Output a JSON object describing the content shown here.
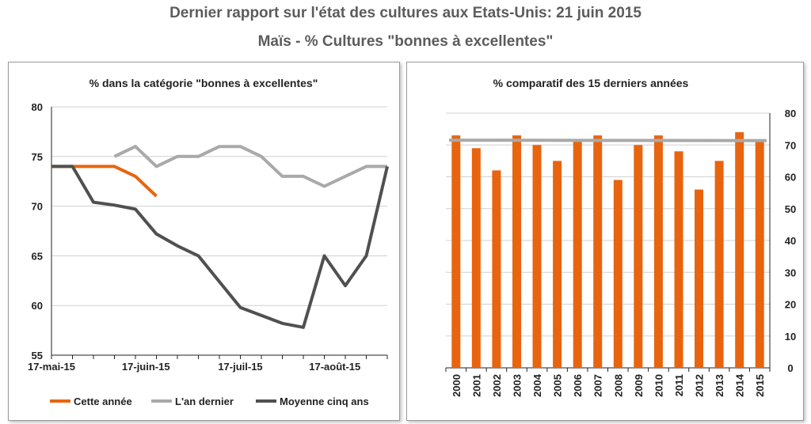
{
  "header": {
    "title": "Dernier rapport sur l'état des cultures aux Etats-Unis: 21 juin 2015",
    "subtitle": "Maïs - % Cultures \"bonnes à excellentes\""
  },
  "colors": {
    "orange": "#e8640f",
    "light_gray": "#a9a9a9",
    "dark_gray": "#505050",
    "grid": "#d0d0d0",
    "axis": "#222222"
  },
  "chart_data": [
    {
      "type": "line",
      "title": "% dans la catégorie \"bonnes à excellentes\"",
      "ylim": [
        55,
        80
      ],
      "yticks": [
        55,
        60,
        65,
        70,
        75,
        80
      ],
      "x_tick_labels": [
        "17-mai-15",
        "17-juin-15",
        "17-juil-15",
        "17-août-15"
      ],
      "x_tick_index": [
        0,
        4.5,
        9,
        13.5
      ],
      "x_count": 17,
      "grid": true,
      "legend_position": "bottom",
      "series": [
        {
          "name": "Cette année",
          "color": "#e8640f",
          "values": [
            74,
            74,
            74,
            74,
            73,
            71
          ]
        },
        {
          "name": "L'an dernier",
          "color": "#a9a9a9",
          "values": [
            null,
            null,
            null,
            75,
            76,
            74,
            75,
            75,
            76,
            76,
            75,
            73,
            73,
            72,
            73,
            74,
            74
          ]
        },
        {
          "name": "Moyenne cinq ans",
          "color": "#505050",
          "values": [
            74,
            74,
            70.4,
            70.1,
            69.7,
            67.2,
            66,
            65,
            62.4,
            59.8,
            59,
            58.2,
            57.8,
            65,
            62,
            65,
            74
          ]
        }
      ]
    },
    {
      "type": "bar",
      "title": "% comparatif des 15 derniers années",
      "categories": [
        "2000",
        "2001",
        "2002",
        "2003",
        "2004",
        "2005",
        "2006",
        "2007",
        "2008",
        "2009",
        "2010",
        "2011",
        "2012",
        "2013",
        "2014",
        "2015"
      ],
      "values": [
        73,
        69,
        62,
        73,
        70,
        65,
        71,
        73,
        59,
        70,
        73,
        68,
        56,
        65,
        74,
        71
      ],
      "ylim": [
        0,
        80
      ],
      "yticks": [
        0,
        10,
        20,
        30,
        40,
        50,
        60,
        70,
        80
      ],
      "y_axis_side": "right",
      "reference_line": 71.5,
      "bar_color": "#e8640f",
      "grid": true
    }
  ]
}
